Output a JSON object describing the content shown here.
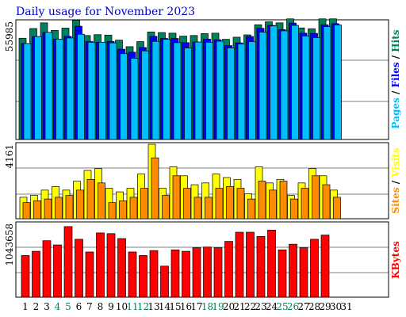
{
  "chart_data": {
    "type": "bar",
    "title": "Daily usage for November 2023",
    "days": [
      "1",
      "2",
      "3",
      "4",
      "5",
      "6",
      "7",
      "8",
      "9",
      "10",
      "11",
      "12",
      "13",
      "14",
      "15",
      "16",
      "17",
      "18",
      "19",
      "20",
      "21",
      "22",
      "23",
      "24",
      "25",
      "26",
      "27",
      "28",
      "29",
      "30",
      "31"
    ],
    "weekend_days": [
      "4",
      "5",
      "11",
      "12",
      "18",
      "19",
      "25",
      "26"
    ],
    "panels": [
      {
        "name": "hits_files_pages",
        "ymax_label": "55985",
        "ylim": [
          0,
          55985
        ],
        "legend": [
          "Pages",
          "Files",
          "Hits"
        ],
        "series": [
          {
            "name": "Hits",
            "color": "#00805c",
            "values": [
              48000,
              52600,
              55300,
              51700,
              52800,
              56500,
              49300,
              49700,
              49500,
              47100,
              44000,
              46400,
              51000,
              50700,
              50400,
              49000,
              49300,
              50200,
              50400,
              47500,
              48500,
              49600,
              54400,
              55800,
              55300,
              57200,
              52900,
              52500,
              57200,
              57200,
              0
            ]
          },
          {
            "name": "Files",
            "color": "#0000ff",
            "values": [
              45500,
              48800,
              50800,
              47600,
              48900,
              53700,
              46500,
              46100,
              46500,
              42800,
              41400,
              43600,
              48900,
              47900,
              47900,
              45900,
              46200,
              47600,
              47300,
              44500,
              45800,
              48800,
              52700,
              54100,
              52100,
              55200,
              50400,
              50300,
              54400,
              54900,
              0
            ]
          },
          {
            "name": "Pages",
            "color": "#00bfff",
            "values": [
              45500,
              48800,
              50800,
              47600,
              48100,
              49900,
              46100,
              46100,
              45800,
              40700,
              38500,
              42000,
              46500,
              47500,
              45900,
              43400,
              46200,
              46100,
              46600,
              43400,
              45300,
              46400,
              50900,
              53800,
              51500,
              54100,
              49100,
              48300,
              53500,
              54300,
              0
            ]
          }
        ]
      },
      {
        "name": "visits_sites",
        "ymax_label": "4161",
        "ylim": [
          0,
          4161
        ],
        "legend": [
          "Sites",
          "Visits"
        ],
        "series": [
          {
            "name": "Visits",
            "color": "#ffff00",
            "values": [
              1200,
              1300,
              1600,
              1800,
              1600,
              2100,
              2700,
              2800,
              1700,
              1500,
              1700,
              2500,
              4161,
              1700,
              2900,
              2400,
              1900,
              2000,
              2500,
              2300,
              2200,
              1400,
              2900,
              2000,
              2200,
              1300,
              2000,
              2800,
              2400,
              1600,
              0
            ]
          },
          {
            "name": "Sites",
            "color": "#ff8c00",
            "values": [
              900,
              1000,
              1100,
              1200,
              1300,
              1600,
              2200,
              2000,
              900,
              1000,
              1200,
              1700,
              3400,
              1300,
              2400,
              1700,
              1200,
              1200,
              1700,
              1800,
              1700,
              1100,
              2100,
              1600,
              2100,
              1100,
              1700,
              2400,
              1900,
              1200,
              0
            ]
          }
        ]
      },
      {
        "name": "kbytes",
        "ymax_label": "1043658",
        "ylim": [
          0,
          1043658
        ],
        "legend": [
          "KBytes"
        ],
        "series": [
          {
            "name": "KBytes",
            "color": "#ff0000",
            "values": [
              590000,
              650000,
              800000,
              740000,
              1000000,
              820000,
              640000,
              910000,
              900000,
              830000,
              640000,
              590000,
              660000,
              440000,
              670000,
              650000,
              700000,
              710000,
              700000,
              790000,
              920000,
              920000,
              860000,
              950000,
              670000,
              750000,
              700000,
              820000,
              880000,
              0,
              0
            ]
          }
        ]
      }
    ]
  }
}
